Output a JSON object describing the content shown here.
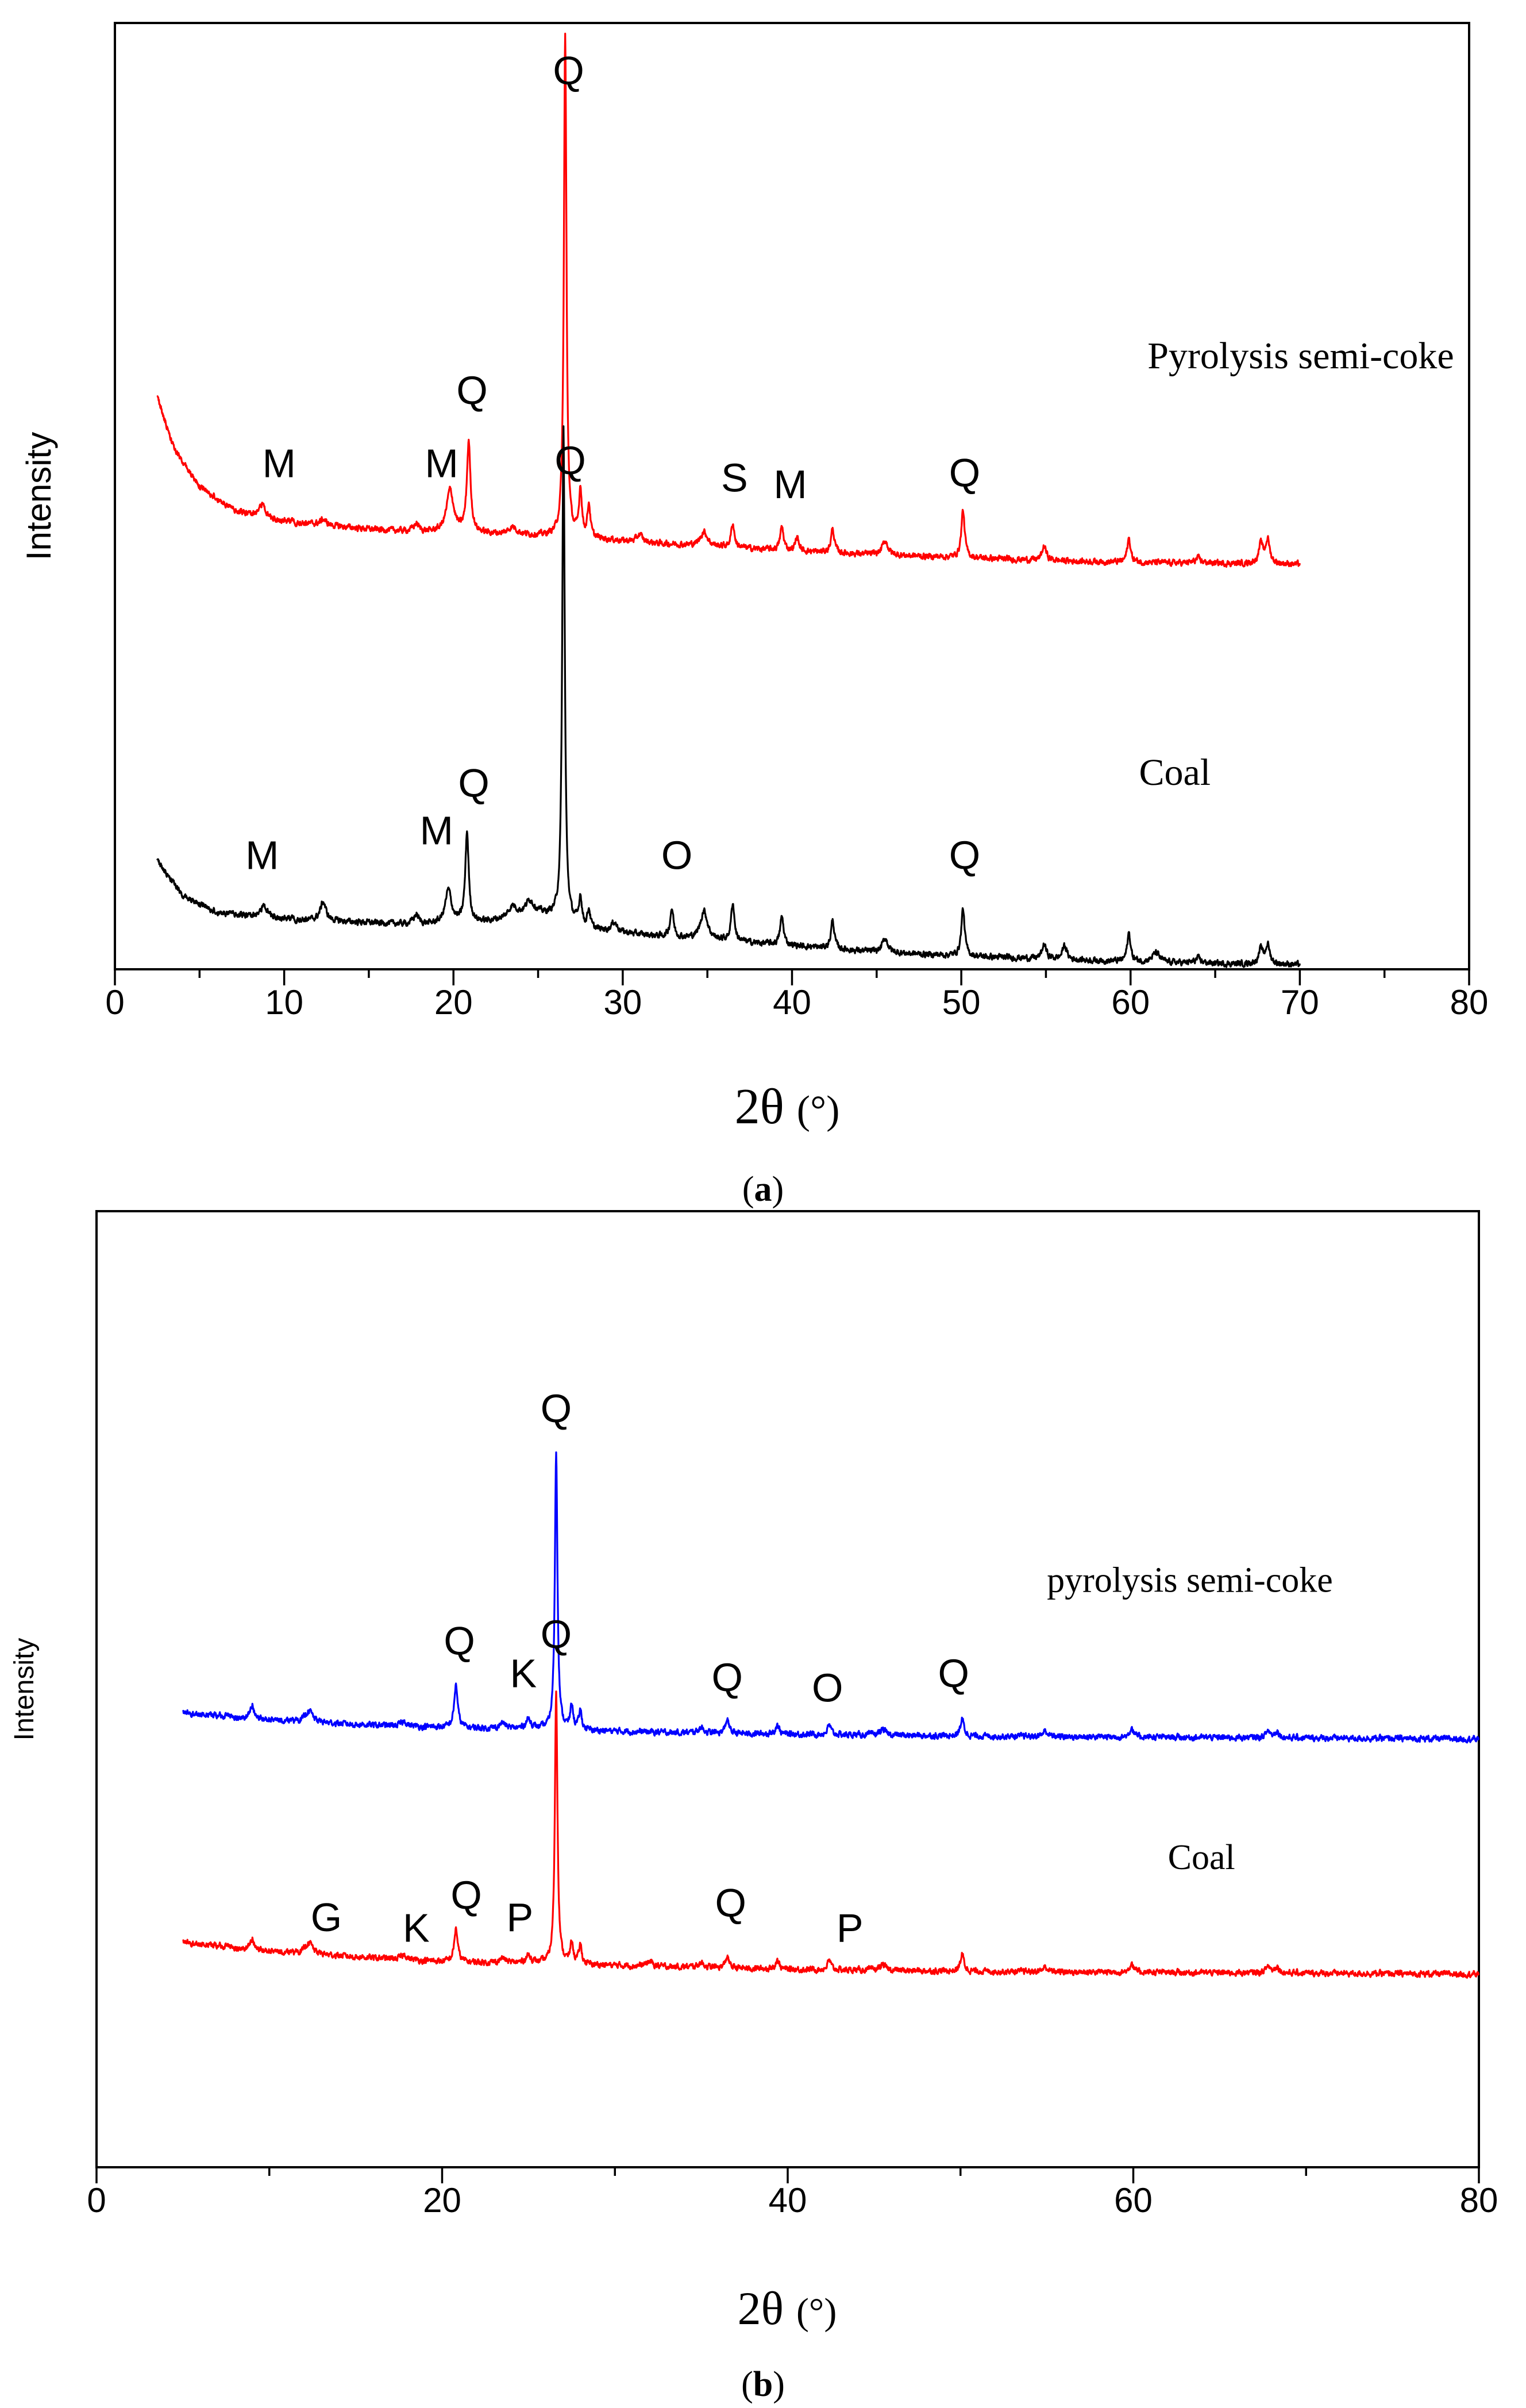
{
  "colors": {
    "axis": "#000000",
    "panel_a_top": "#ff0000",
    "panel_a_bottom": "#000000",
    "panel_b_top": "#0000ff",
    "panel_b_bottom": "#ff0000"
  },
  "chart_data": [
    {
      "type": "line",
      "panel_label_open": "(",
      "panel_label_letter": "a",
      "panel_label_close": ")",
      "xlabel_main": "2θ",
      "xlabel_unit": "(°)",
      "ylabel": "Intensity",
      "xlim": [
        0,
        80
      ],
      "ylim": [
        0,
        100
      ],
      "xticks": [
        "0",
        "10",
        "20",
        "30",
        "40",
        "50",
        "60",
        "70",
        "80"
      ],
      "xtick_values": [
        0,
        10,
        20,
        30,
        40,
        50,
        60,
        70,
        80
      ],
      "series": [
        {
          "name": "Pyrolysis semi-coke",
          "color": "#ff0000",
          "baseline": [
            [
              2.5,
              60.5
            ],
            [
              3.5,
              55
            ],
            [
              5,
              51
            ],
            [
              7,
              48.5
            ],
            [
              9,
              47.5
            ],
            [
              12,
              47
            ],
            [
              15,
              46.5
            ],
            [
              18,
              46.2
            ],
            [
              22,
              46
            ],
            [
              25,
              45.8
            ],
            [
              28,
              45.5
            ],
            [
              32,
              45
            ],
            [
              36,
              44.6
            ],
            [
              40,
              44.2
            ],
            [
              45,
              43.8
            ],
            [
              50,
              43.5
            ],
            [
              55,
              43.2
            ],
            [
              60,
              43
            ],
            [
              65,
              42.9
            ],
            [
              70,
              42.8
            ]
          ],
          "peaks": [
            [
              8.7,
              1.5,
              0.25
            ],
            [
              12.3,
              0.6,
              0.2
            ],
            [
              17.8,
              0.8,
              0.2
            ],
            [
              19.8,
              4.5,
              0.25
            ],
            [
              20.9,
              9.5,
              0.13
            ],
            [
              23.5,
              0.8,
              0.3
            ],
            [
              26.6,
              53,
              0.09
            ],
            [
              27.5,
              5,
              0.1
            ],
            [
              28.0,
              3.5,
              0.1
            ],
            [
              31.0,
              0.8,
              0.2
            ],
            [
              34.8,
              1.5,
              0.25
            ],
            [
              36.5,
              2.5,
              0.12
            ],
            [
              39.4,
              2.5,
              0.12
            ],
            [
              40.3,
              1.5,
              0.12
            ],
            [
              42.4,
              2.5,
              0.12
            ],
            [
              45.5,
              1.5,
              0.2
            ],
            [
              50.1,
              5,
              0.12
            ],
            [
              54.9,
              1.5,
              0.15
            ],
            [
              59.9,
              2.5,
              0.12
            ],
            [
              64.0,
              0.5,
              0.2
            ],
            [
              67.7,
              2,
              0.15
            ],
            [
              68.1,
              2.5,
              0.15
            ]
          ],
          "annotations": [
            {
              "text": "M",
              "x": 9.7,
              "y": 52
            },
            {
              "text": "M",
              "x": 19.3,
              "y": 52
            },
            {
              "text": "Q",
              "x": 21.1,
              "y": 59.7
            },
            {
              "text": "Q",
              "x": 26.8,
              "y": 93.5
            },
            {
              "text": "S",
              "x": 36.6,
              "y": 50.5
            },
            {
              "text": "M",
              "x": 39.9,
              "y": 49.8
            },
            {
              "text": "Q",
              "x": 50.2,
              "y": 51
            }
          ]
        },
        {
          "name": "Coal",
          "color": "#000000",
          "baseline": [
            [
              2.5,
              11.5
            ],
            [
              4,
              7.8
            ],
            [
              6,
              6
            ],
            [
              8,
              5.6
            ],
            [
              10,
              5.3
            ],
            [
              14,
              5
            ],
            [
              18,
              4.7
            ],
            [
              22,
              5
            ],
            [
              25,
              5.8
            ],
            [
              26,
              5.5
            ],
            [
              28,
              4.2
            ],
            [
              32,
              3.5
            ],
            [
              36,
              3
            ],
            [
              40,
              2.5
            ],
            [
              45,
              1.8
            ],
            [
              50,
              1.4
            ],
            [
              55,
              1.1
            ],
            [
              60,
              0.8
            ],
            [
              65,
              0.6
            ],
            [
              70,
              0.5
            ]
          ],
          "peaks": [
            [
              8.8,
              1.2,
              0.25
            ],
            [
              12.3,
              2,
              0.2
            ],
            [
              17.8,
              1,
              0.2
            ],
            [
              19.7,
              3.5,
              0.22
            ],
            [
              20.8,
              9.5,
              0.12
            ],
            [
              23.5,
              1.2,
              0.3
            ],
            [
              24.5,
              1.5,
              0.3
            ],
            [
              26.5,
              52,
              0.09
            ],
            [
              27.5,
              3,
              0.1
            ],
            [
              28.0,
              2,
              0.1
            ],
            [
              29.5,
              1,
              0.2
            ],
            [
              32.9,
              3,
              0.12
            ],
            [
              34.8,
              3,
              0.25
            ],
            [
              36.5,
              4,
              0.12
            ],
            [
              39.4,
              3,
              0.12
            ],
            [
              42.4,
              3,
              0.12
            ],
            [
              45.5,
              1.5,
              0.2
            ],
            [
              50.1,
              5,
              0.12
            ],
            [
              54.9,
              1.5,
              0.15
            ],
            [
              56.1,
              1.5,
              0.15
            ],
            [
              59.9,
              3,
              0.12
            ],
            [
              61.5,
              1,
              0.25
            ],
            [
              64.0,
              0.5,
              0.2
            ],
            [
              67.7,
              1.5,
              0.15
            ],
            [
              68.1,
              2,
              0.15
            ]
          ],
          "annotations": [
            {
              "text": "M",
              "x": 8.7,
              "y": 10.6
            },
            {
              "text": "M",
              "x": 19.0,
              "y": 13.2
            },
            {
              "text": "Q",
              "x": 21.2,
              "y": 18.2
            },
            {
              "text": "Q",
              "x": 26.9,
              "y": 52.3
            },
            {
              "text": "O",
              "x": 33.2,
              "y": 10.6
            },
            {
              "text": "Q",
              "x": 50.2,
              "y": 10.6
            }
          ]
        }
      ],
      "curve_labels": [
        {
          "text": "Pyrolysis semi-coke",
          "x": 61.0,
          "y": 63.5
        },
        {
          "text": "Coal",
          "x": 60.5,
          "y": 19.5
        }
      ]
    },
    {
      "type": "line",
      "panel_label_open": "(",
      "panel_label_letter": "b",
      "panel_label_close": ")",
      "xlabel_main": "2θ",
      "xlabel_unit": "(°)",
      "ylabel": "Intensity",
      "xlim": [
        0,
        80
      ],
      "ylim": [
        0,
        100
      ],
      "xticks": [
        "0",
        "20",
        "40",
        "60",
        "80"
      ],
      "xtick_values": [
        0,
        20,
        40,
        60,
        80
      ],
      "minor_step": 10,
      "series": [
        {
          "name": "pyrolysis semi-coke",
          "color": "#0000ff",
          "baseline": [
            [
              5,
              47.5
            ],
            [
              10,
              46.8
            ],
            [
              15,
              46.3
            ],
            [
              20,
              46
            ],
            [
              25,
              45.8
            ],
            [
              30,
              45.6
            ],
            [
              35,
              45.4
            ],
            [
              40,
              45.3
            ],
            [
              50,
              45.1
            ],
            [
              60,
              45
            ],
            [
              70,
              44.9
            ],
            [
              80,
              44.8
            ]
          ],
          "peaks": [
            [
              9.0,
              1.5,
              0.12
            ],
            [
              12.3,
              1.2,
              0.25
            ],
            [
              17.8,
              0.5,
              0.2
            ],
            [
              20.8,
              4.5,
              0.12
            ],
            [
              23.5,
              0.6,
              0.2
            ],
            [
              25.0,
              1,
              0.2
            ],
            [
              26.6,
              29,
              0.09
            ],
            [
              27.5,
              2.5,
              0.1
            ],
            [
              28.0,
              2,
              0.1
            ],
            [
              35.0,
              0.6,
              0.2
            ],
            [
              36.5,
              1.5,
              0.12
            ],
            [
              39.4,
              1,
              0.12
            ],
            [
              42.4,
              1,
              0.12
            ],
            [
              45.5,
              0.6,
              0.2
            ],
            [
              50.1,
              1.8,
              0.12
            ],
            [
              54.9,
              0.6,
              0.15
            ],
            [
              59.9,
              1,
              0.12
            ],
            [
              67.8,
              0.7,
              0.15
            ],
            [
              68.3,
              0.7,
              0.15
            ]
          ],
          "annotations": [
            {
              "text": "Q",
              "x": 21.0,
              "y": 53.6
            },
            {
              "text": "K",
              "x": 24.7,
              "y": 50.2
            },
            {
              "text": "Q",
              "x": 26.6,
              "y": 77.9
            },
            {
              "text": "Q",
              "x": 36.5,
              "y": 49.8
            },
            {
              "text": "O",
              "x": 42.3,
              "y": 48.7
            },
            {
              "text": "Q",
              "x": 49.6,
              "y": 50.2
            }
          ]
        },
        {
          "name": "Coal",
          "color": "#ff0000",
          "baseline": [
            [
              5,
              23.5
            ],
            [
              10,
              22.6
            ],
            [
              15,
              22
            ],
            [
              20,
              21.5
            ],
            [
              25,
              21.3
            ],
            [
              30,
              21.1
            ],
            [
              35,
              20.9
            ],
            [
              40,
              20.7
            ],
            [
              50,
              20.5
            ],
            [
              60,
              20.4
            ],
            [
              70,
              20.3
            ],
            [
              80,
              20.2
            ]
          ],
          "peaks": [
            [
              9.0,
              1.2,
              0.12
            ],
            [
              12.3,
              1.2,
              0.25
            ],
            [
              17.8,
              0.5,
              0.2
            ],
            [
              20.8,
              3.5,
              0.12
            ],
            [
              23.5,
              0.5,
              0.2
            ],
            [
              25.0,
              0.8,
              0.2
            ],
            [
              26.6,
              28.5,
              0.09
            ],
            [
              27.5,
              2.2,
              0.1
            ],
            [
              28.0,
              2,
              0.1
            ],
            [
              32.0,
              0.5,
              0.2
            ],
            [
              35.0,
              0.5,
              0.2
            ],
            [
              36.5,
              1.2,
              0.12
            ],
            [
              39.4,
              1,
              0.12
            ],
            [
              42.4,
              1,
              0.12
            ],
            [
              45.5,
              0.6,
              0.2
            ],
            [
              50.1,
              1.8,
              0.12
            ],
            [
              54.9,
              0.5,
              0.15
            ],
            [
              59.9,
              1,
              0.12
            ],
            [
              67.8,
              0.7,
              0.15
            ],
            [
              68.3,
              0.7,
              0.15
            ]
          ],
          "annotations": [
            {
              "text": "G",
              "x": 13.3,
              "y": 24.7
            },
            {
              "text": "K",
              "x": 18.5,
              "y": 23.6
            },
            {
              "text": "Q",
              "x": 21.4,
              "y": 27.0
            },
            {
              "text": "P",
              "x": 24.5,
              "y": 24.7
            },
            {
              "text": "Q",
              "x": 26.6,
              "y": 54.3
            },
            {
              "text": "Q",
              "x": 36.7,
              "y": 26.2
            },
            {
              "text": "P",
              "x": 43.6,
              "y": 23.6
            }
          ]
        }
      ],
      "curve_labels": [
        {
          "text": "pyrolysis semi-coke",
          "x": 55.0,
          "y": 60.2
        },
        {
          "text": "Coal",
          "x": 62.0,
          "y": 31.2
        }
      ]
    }
  ]
}
